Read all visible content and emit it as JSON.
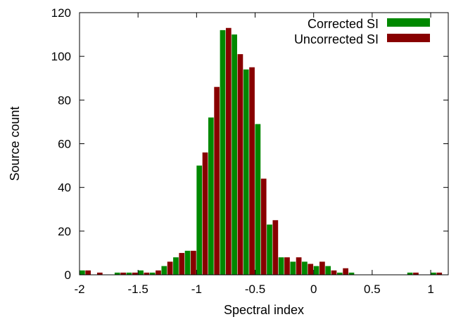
{
  "chart_data": {
    "type": "bar",
    "title": "",
    "xlabel": "Spectral index",
    "ylabel": "Source count",
    "xlim": [
      -2,
      1.15
    ],
    "ylim": [
      0,
      120
    ],
    "bin_width": 0.1,
    "xticks": [
      {
        "value": -2,
        "label": "-2"
      },
      {
        "value": -1.5,
        "label": "-1.5"
      },
      {
        "value": -1,
        "label": "-1"
      },
      {
        "value": -0.5,
        "label": "-0.5"
      },
      {
        "value": 0,
        "label": "0"
      },
      {
        "value": 0.5,
        "label": "0.5"
      },
      {
        "value": 1,
        "label": "1"
      }
    ],
    "yticks": [
      {
        "value": 0,
        "label": "0"
      },
      {
        "value": 20,
        "label": "20"
      },
      {
        "value": 40,
        "label": "40"
      },
      {
        "value": 60,
        "label": "60"
      },
      {
        "value": 80,
        "label": "80"
      },
      {
        "value": 100,
        "label": "100"
      },
      {
        "value": 120,
        "label": "120"
      }
    ],
    "grid": false,
    "legend_position": "top-right",
    "bin_starts": [
      -2.0,
      -1.9,
      -1.8,
      -1.7,
      -1.6,
      -1.5,
      -1.4,
      -1.3,
      -1.2,
      -1.1,
      -1.0,
      -0.9,
      -0.8,
      -0.7,
      -0.6,
      -0.5,
      -0.4,
      -0.3,
      -0.2,
      -0.1,
      0.0,
      0.1,
      0.2,
      0.3,
      0.4,
      0.5,
      0.6,
      0.7,
      0.8,
      0.9,
      1.0,
      1.1
    ],
    "series": [
      {
        "name": "Corrected SI",
        "color": "#008800",
        "values": [
          2,
          0,
          0,
          1,
          1,
          2,
          1,
          4,
          8,
          11,
          50,
          72,
          112,
          110,
          94,
          69,
          23,
          8,
          6,
          6,
          4,
          4,
          1,
          1,
          0,
          0,
          0,
          0,
          1,
          0,
          1,
          0
        ]
      },
      {
        "name": "Uncorrected SI",
        "color": "#880000",
        "values": [
          2,
          1,
          0,
          1,
          1,
          1,
          2,
          6,
          10,
          11,
          56,
          86,
          113,
          101,
          95,
          44,
          25,
          8,
          8,
          5,
          6,
          2,
          3,
          0,
          0,
          0,
          0,
          0,
          1,
          0,
          1,
          0
        ]
      }
    ]
  }
}
